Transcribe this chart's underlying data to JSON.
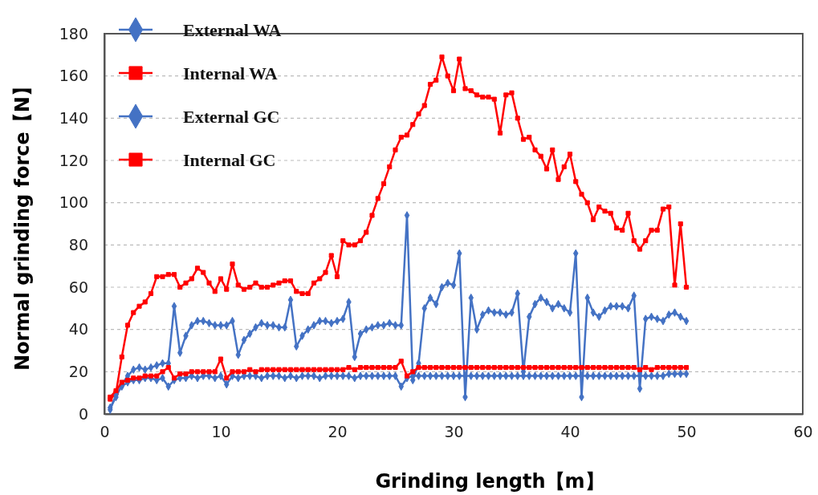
{
  "chart_data": {
    "type": "line",
    "xlabel": "Grinding length【m】",
    "ylabel": "Normal grinding force【N】",
    "x": [
      0.5,
      1,
      1.5,
      2,
      2.5,
      3,
      3.5,
      4,
      4.5,
      5,
      5.5,
      6,
      6.5,
      7,
      7.5,
      8,
      8.5,
      9,
      9.5,
      10,
      10.5,
      11,
      11.5,
      12,
      12.5,
      13,
      13.5,
      14,
      14.5,
      15,
      15.5,
      16,
      16.5,
      17,
      17.5,
      18,
      18.5,
      19,
      19.5,
      20,
      20.5,
      21,
      21.5,
      22,
      22.5,
      23,
      23.5,
      24,
      24.5,
      25,
      25.5,
      26,
      26.5,
      27,
      27.5,
      28,
      28.5,
      29,
      29.5,
      30,
      30.5,
      31,
      31.5,
      32,
      32.5,
      33,
      33.5,
      34,
      34.5,
      35,
      35.5,
      36,
      36.5,
      37,
      37.5,
      38,
      38.5,
      39,
      39.5,
      40,
      40.5,
      41,
      41.5,
      42,
      42.5,
      43,
      43.5,
      44,
      44.5,
      45,
      45.5,
      46,
      46.5,
      47,
      47.5,
      48,
      48.5,
      49,
      49.5,
      50
    ],
    "xlim": [
      0,
      60
    ],
    "xticks": [
      0,
      10,
      20,
      30,
      40,
      50,
      60
    ],
    "ylim": [
      0,
      180
    ],
    "yticks": [
      0,
      20,
      40,
      60,
      80,
      100,
      120,
      140,
      160,
      180
    ],
    "grid": "y",
    "legend": "top left",
    "line_style": "solid",
    "series": [
      {
        "name": "External WA",
        "color": "#4472c4",
        "marker": "diamond",
        "values": [
          3,
          8,
          14,
          18,
          21,
          22,
          21,
          22,
          23,
          24,
          24,
          51,
          29,
          37,
          42,
          44,
          44,
          43,
          42,
          42,
          42,
          44,
          28,
          35,
          38,
          41,
          43,
          42,
          42,
          41,
          41,
          54,
          32,
          37,
          40,
          42,
          44,
          44,
          43,
          44,
          45,
          53,
          27,
          38,
          40,
          41,
          42,
          42,
          43,
          42,
          42,
          94,
          16,
          24,
          50,
          55,
          52,
          60,
          62,
          61,
          76,
          8,
          55,
          40,
          47,
          49,
          48,
          48,
          47,
          48,
          57,
          20,
          46,
          52,
          55,
          53,
          50,
          52,
          50,
          48,
          76,
          8,
          55,
          48,
          46,
          49,
          51,
          51,
          51,
          50,
          56,
          12,
          45,
          46,
          45,
          44,
          47,
          48,
          46,
          44
        ]
      },
      {
        "name": "Internal WA",
        "color": "#ff0000",
        "marker": "square",
        "values": [
          7,
          10,
          27,
          42,
          48,
          51,
          53,
          57,
          65,
          65,
          66,
          66,
          60,
          62,
          64,
          69,
          67,
          62,
          58,
          64,
          59,
          71,
          61,
          59,
          60,
          62,
          60,
          60,
          61,
          62,
          63,
          63,
          58,
          57,
          57,
          62,
          64,
          67,
          75,
          65,
          82,
          80,
          80,
          82,
          86,
          94,
          102,
          109,
          117,
          125,
          131,
          132,
          137,
          142,
          146,
          156,
          158,
          169,
          160,
          153,
          168,
          154,
          153,
          151,
          150,
          150,
          149,
          133,
          151,
          152,
          140,
          130,
          131,
          125,
          122,
          116,
          125,
          111,
          117,
          123,
          110,
          104,
          100,
          92,
          98,
          96,
          95,
          88,
          87,
          95,
          82,
          78,
          82,
          87,
          87,
          97,
          98,
          61,
          90,
          60
        ]
      },
      {
        "name": "External GC",
        "color": "#4472c4",
        "marker": "diamond",
        "values": [
          2,
          9,
          13,
          15,
          16,
          16,
          17,
          17,
          16,
          17,
          13,
          16,
          17,
          17,
          18,
          17,
          18,
          18,
          17,
          18,
          14,
          18,
          17,
          18,
          18,
          18,
          17,
          18,
          18,
          18,
          17,
          18,
          17,
          18,
          18,
          18,
          17,
          18,
          18,
          18,
          18,
          18,
          17,
          18,
          18,
          18,
          18,
          18,
          18,
          18,
          13,
          17,
          18,
          18,
          18,
          18,
          18,
          18,
          18,
          18,
          18,
          18,
          18,
          18,
          18,
          18,
          18,
          18,
          18,
          18,
          18,
          18,
          18,
          18,
          18,
          18,
          18,
          18,
          18,
          18,
          18,
          18,
          18,
          18,
          18,
          18,
          18,
          18,
          18,
          18,
          18,
          18,
          18,
          18,
          18,
          18,
          19,
          19,
          19,
          19
        ]
      },
      {
        "name": "Internal GC",
        "color": "#ff0000",
        "marker": "square",
        "values": [
          8,
          11,
          15,
          16,
          17,
          17,
          18,
          18,
          18,
          20,
          22,
          17,
          19,
          19,
          20,
          20,
          20,
          20,
          20,
          26,
          17,
          20,
          20,
          20,
          21,
          20,
          21,
          21,
          21,
          21,
          21,
          21,
          21,
          21,
          21,
          21,
          21,
          21,
          21,
          21,
          21,
          22,
          21,
          22,
          22,
          22,
          22,
          22,
          22,
          22,
          25,
          18,
          20,
          22,
          22,
          22,
          22,
          22,
          22,
          22,
          22,
          22,
          22,
          22,
          22,
          22,
          22,
          22,
          22,
          22,
          22,
          22,
          22,
          22,
          22,
          22,
          22,
          22,
          22,
          22,
          22,
          22,
          22,
          22,
          22,
          22,
          22,
          22,
          22,
          22,
          22,
          21,
          22,
          21,
          22,
          22,
          22,
          22,
          22,
          22
        ]
      }
    ]
  }
}
